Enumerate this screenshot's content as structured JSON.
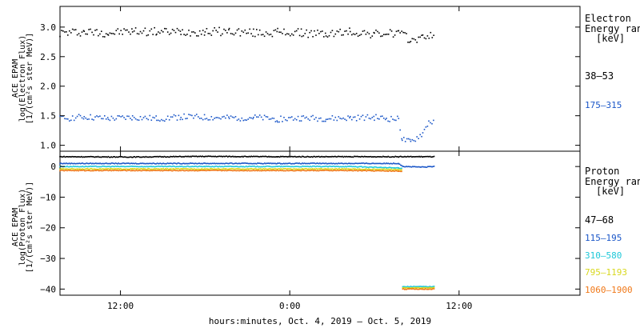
{
  "chart_data": [
    {
      "type": "scatter",
      "panel": "electron",
      "ylabel": [
        "ACE EPAM",
        "log(Electron Flux)",
        "[1/(cm²s ster MeV)]"
      ],
      "ylim": [
        0.9,
        3.35
      ],
      "yticks": [
        1.0,
        1.5,
        2.0,
        2.5,
        3.0
      ],
      "ytick_labels": [
        "1.0",
        "1.5",
        "2.0",
        "2.5",
        "3.0"
      ],
      "legend": {
        "title": [
          "Electron",
          "Energy ranges",
          "[keV]"
        ],
        "placement": "right"
      },
      "series": [
        {
          "name": "38–53",
          "color": "#000000",
          "x": [
            0,
            2,
            4,
            6,
            8,
            10,
            12,
            14,
            16,
            18,
            20,
            22,
            24,
            26,
            28,
            29,
            30,
            31
          ],
          "y": [
            2.9,
            2.92,
            2.9,
            2.93,
            2.92,
            2.92,
            2.92,
            2.93,
            2.9,
            2.91,
            2.9,
            2.88,
            2.92,
            2.88,
            2.9,
            2.78,
            2.82,
            2.9
          ]
        },
        {
          "name": "175–315",
          "color": "#1a56c8",
          "x": [
            0,
            2,
            4,
            6,
            8,
            10,
            12,
            14,
            16,
            18,
            20,
            22,
            24,
            26,
            27,
            28,
            28.3,
            29,
            30,
            30.5,
            31
          ],
          "y": [
            1.45,
            1.48,
            1.45,
            1.47,
            1.45,
            1.48,
            1.47,
            1.46,
            1.47,
            1.44,
            1.46,
            1.45,
            1.46,
            1.47,
            1.45,
            1.44,
            1.1,
            1.05,
            1.2,
            1.4,
            1.38
          ]
        }
      ]
    },
    {
      "type": "scatter",
      "panel": "proton",
      "ylabel": [
        "ACE EPAM",
        "log(Proton Flux)",
        "[1/(cm²s ster MeV)]"
      ],
      "ylim": [
        -42,
        5
      ],
      "yticks": [
        0,
        -10,
        -20,
        -30,
        -40
      ],
      "ytick_labels": [
        "0",
        "−10",
        "−20",
        "−30",
        "−40"
      ],
      "legend": {
        "title": [
          "Proton",
          "Energy ranges",
          "[keV]"
        ],
        "placement": "right"
      },
      "series": [
        {
          "name": "47–68",
          "color": "#000000",
          "x": [
            0,
            6,
            12,
            18,
            24,
            28,
            30,
            31
          ],
          "y": [
            3.2,
            3.1,
            3.3,
            3.2,
            3.2,
            3.2,
            3.2,
            3.2
          ]
        },
        {
          "name": "115–195",
          "color": "#1a56c8",
          "x": [
            0,
            6,
            12,
            18,
            24,
            28,
            28.4,
            30,
            31
          ],
          "y": [
            1.0,
            1.0,
            1.0,
            1.0,
            1.0,
            1.0,
            0.0,
            -0.2,
            0.0
          ]
        },
        {
          "name": "310–580",
          "color": "#1ec8d8",
          "x": [
            0,
            6,
            12,
            18,
            24,
            28,
            28.5,
            30,
            31
          ],
          "y": [
            0.0,
            0.0,
            0.0,
            0.0,
            0.0,
            -0.5,
            -39.2,
            -39.2,
            -39.2
          ]
        },
        {
          "name": "795–1193",
          "color": "#d8d81e",
          "x": [
            0,
            6,
            12,
            18,
            24,
            28,
            28.5,
            30,
            31
          ],
          "y": [
            -0.8,
            -0.8,
            -0.8,
            -0.8,
            -0.8,
            -1.0,
            -39.6,
            -39.6,
            -39.6
          ]
        },
        {
          "name": "1060–1900",
          "color": "#f07818",
          "x": [
            0,
            6,
            12,
            18,
            24,
            28,
            28.5,
            30,
            31
          ],
          "y": [
            -1.3,
            -1.3,
            -1.3,
            -1.3,
            -1.3,
            -1.5,
            -40.0,
            -40.0,
            -40.0
          ]
        }
      ]
    }
  ],
  "xaxis": {
    "xlim": [
      0,
      43
    ],
    "xtick_pos": [
      5,
      19,
      33
    ],
    "xtick_labels": [
      "12:00",
      "0:00",
      "12:00"
    ],
    "xlabel": "hours:minutes, Oct.  4, 2019 – Oct.  5, 2019"
  }
}
